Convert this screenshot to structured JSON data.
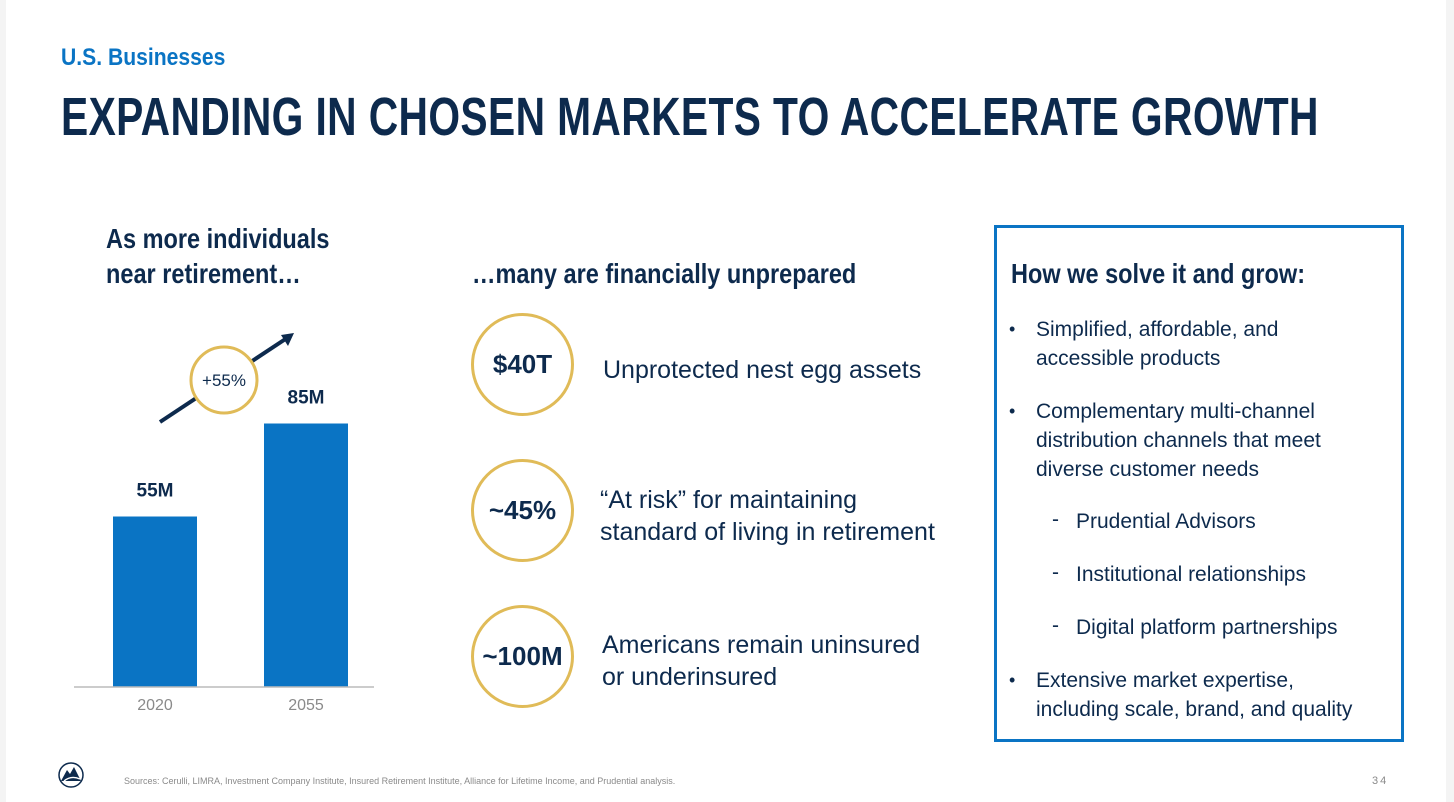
{
  "header": {
    "kicker": "U.S. Businesses",
    "title": "EXPANDING IN CHOSEN MARKETS TO ACCELERATE GROWTH"
  },
  "left": {
    "heading_line1": "As more individuals",
    "heading_line2": "near retirement…",
    "growth_badge": "+55%"
  },
  "chart_data": {
    "type": "bar",
    "categories": [
      "2020",
      "2055"
    ],
    "values": [
      55,
      85
    ],
    "data_labels": [
      "55M",
      "85M"
    ],
    "ylim": [
      0,
      100
    ],
    "bar_color": "#0a74c4"
  },
  "middle": {
    "heading": "…many are financially unprepared",
    "stats": [
      {
        "value": "$40T",
        "line1": "Unprotected nest egg assets",
        "line2": ""
      },
      {
        "value": "~45%",
        "line1": "“At risk” for maintaining",
        "line2": "standard of living in retirement"
      },
      {
        "value": "~100M",
        "line1": "Americans remain uninsured",
        "line2": "or underinsured"
      }
    ]
  },
  "right": {
    "heading": "How we solve it and grow:",
    "bullet1": {
      "line1": "Simplified, affordable, and",
      "line2": "accessible products"
    },
    "bullet2": {
      "line1": "Complementary multi-channel",
      "line2": "distribution channels that meet",
      "line3": "diverse customer needs"
    },
    "sub_items": [
      "Prudential Advisors",
      "Institutional relationships",
      "Digital platform partnerships"
    ],
    "bullet3": {
      "line1": "Extensive market expertise,",
      "line2": "including scale, brand, and quality"
    }
  },
  "footer": {
    "sources": "Sources: Cerulli, LIMRA, Investment Company Institute, Insured Retirement Institute, Alliance for Lifetime Income, and Prudential analysis.",
    "page_number": "34"
  },
  "colors": {
    "navy": "#0d2a4d",
    "brand_blue": "#0a74c4",
    "gold": "#e0bb58"
  }
}
